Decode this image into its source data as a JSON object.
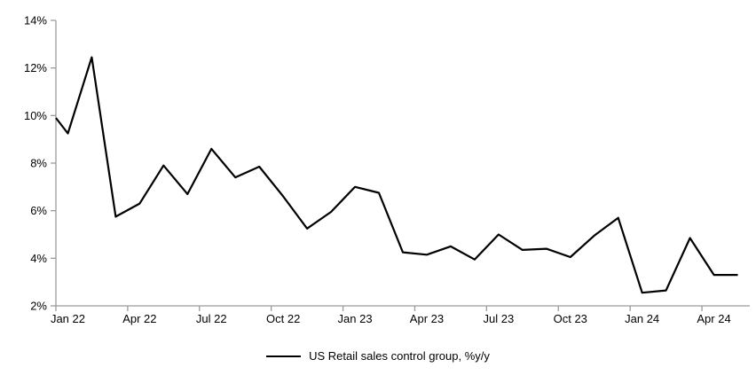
{
  "chart_data": {
    "type": "line",
    "title": "",
    "legend": "US Retail sales control group, %y/y",
    "legend_position": "bottom",
    "grid": false,
    "series_color": "#000000",
    "axis_color": "#9b9b9b",
    "ylim": [
      2,
      14
    ],
    "ytick_step": 2,
    "ytick_labels": [
      "2%",
      "4%",
      "6%",
      "8%",
      "10%",
      "12%",
      "14%"
    ],
    "xtick_labels": [
      "Jan 22",
      "Apr 22",
      "Jul 22",
      "Oct 22",
      "Jan 23",
      "Apr 23",
      "Jul 23",
      "Oct 23",
      "Jan 24",
      "Apr 24"
    ],
    "xtick_every_months": 3,
    "edge_start_value": 9.9,
    "x": [
      "Jan 22",
      "Feb 22",
      "Mar 22",
      "Apr 22",
      "May 22",
      "Jun 22",
      "Jul 22",
      "Aug 22",
      "Sep 22",
      "Oct 22",
      "Nov 22",
      "Dec 22",
      "Jan 23",
      "Feb 23",
      "Mar 23",
      "Apr 23",
      "May 23",
      "Jun 23",
      "Jul 23",
      "Aug 23",
      "Sep 23",
      "Oct 23",
      "Nov 23",
      "Dec 23",
      "Jan 24",
      "Feb 24",
      "Mar 24",
      "Apr 24",
      "May 24"
    ],
    "values": [
      9.25,
      12.45,
      5.75,
      6.3,
      7.9,
      6.7,
      8.6,
      7.4,
      7.85,
      6.6,
      5.25,
      5.95,
      7.0,
      6.75,
      4.25,
      4.15,
      4.5,
      3.95,
      5.0,
      4.35,
      4.4,
      4.05,
      4.95,
      5.7,
      2.55,
      2.65,
      4.85,
      3.3,
      3.3
    ]
  }
}
